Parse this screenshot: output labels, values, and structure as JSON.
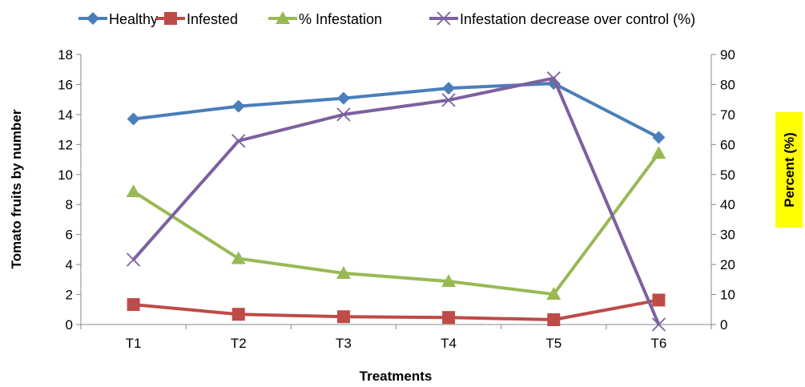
{
  "chart_data": {
    "type": "line",
    "title": "",
    "xlabel": "Treatments",
    "ylabel": "Tomato fruits by number",
    "y2label": "Percent (%)",
    "categories": [
      "T1",
      "T2",
      "T3",
      "T4",
      "T5",
      "T6"
    ],
    "ylim": [
      0,
      18
    ],
    "yticks": [
      0,
      2,
      4,
      6,
      8,
      10,
      12,
      14,
      16,
      18
    ],
    "y2lim": [
      0,
      90
    ],
    "y2ticks": [
      0,
      10,
      20,
      30,
      40,
      50,
      60,
      70,
      80,
      90
    ],
    "grid": false,
    "legend_position": "top",
    "series": [
      {
        "name": "Healthy",
        "axis": "left",
        "marker": "diamond",
        "color": "#4a7ebb",
        "values": [
          13.7,
          14.55,
          15.08,
          15.75,
          16.07,
          12.47
        ]
      },
      {
        "name": "Infested",
        "axis": "left",
        "marker": "square",
        "color": "#be4b48",
        "values": [
          1.33,
          0.68,
          0.52,
          0.47,
          0.32,
          1.63
        ]
      },
      {
        "name": "% Infestation",
        "axis": "right",
        "marker": "triangle",
        "color": "#98b954",
        "values": [
          44.3,
          22.0,
          17.1,
          14.4,
          10.1,
          57.1
        ]
      },
      {
        "name": "Infestation decrease over control (%)",
        "axis": "right",
        "marker": "x",
        "color": "#7d60a0",
        "values": [
          21.6,
          61.2,
          70.0,
          74.8,
          82.1,
          0
        ]
      }
    ]
  }
}
